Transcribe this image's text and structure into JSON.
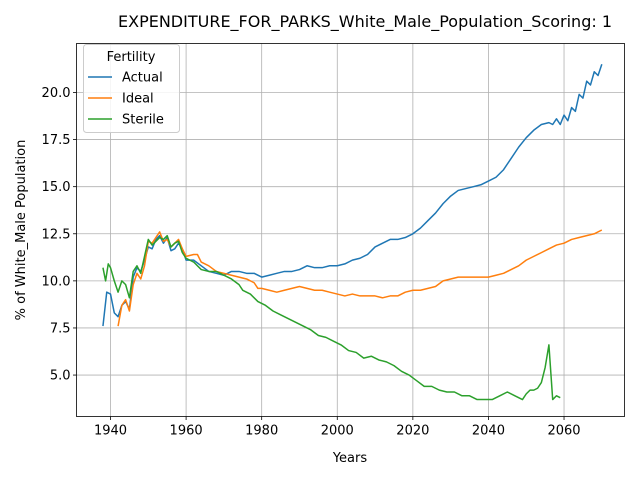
{
  "chart_data": {
    "type": "line",
    "title": "EXPENDITURE_FOR_PARKS_White_Male_Population_Scoring: 1",
    "xlabel": "Years",
    "ylabel": "% of White_Male Population",
    "xlim": [
      1931,
      2076
    ],
    "ylim": [
      2.8,
      22.6
    ],
    "xticks": [
      1940,
      1960,
      1980,
      2000,
      2020,
      2040,
      2060
    ],
    "yticks": [
      5.0,
      7.5,
      10.0,
      12.5,
      15.0,
      17.5,
      20.0
    ],
    "grid": true,
    "legend": {
      "title": "Fertility",
      "placement": "top-left"
    },
    "series": [
      {
        "name": "Actual",
        "color": "#1f77b4",
        "points": [
          [
            1938,
            7.6
          ],
          [
            1939,
            9.4
          ],
          [
            1940,
            9.3
          ],
          [
            1941,
            8.3
          ],
          [
            1942,
            8.1
          ],
          [
            1943,
            8.7
          ],
          [
            1944,
            8.9
          ],
          [
            1945,
            8.5
          ],
          [
            1946,
            10.2
          ],
          [
            1947,
            10.7
          ],
          [
            1948,
            10.5
          ],
          [
            1949,
            11.1
          ],
          [
            1950,
            11.8
          ],
          [
            1951,
            11.7
          ],
          [
            1952,
            12.2
          ],
          [
            1953,
            12.4
          ],
          [
            1954,
            12.0
          ],
          [
            1955,
            12.3
          ],
          [
            1956,
            11.6
          ],
          [
            1957,
            11.7
          ],
          [
            1958,
            12.0
          ],
          [
            1959,
            11.7
          ],
          [
            1960,
            11.1
          ],
          [
            1962,
            11.1
          ],
          [
            1964,
            10.8
          ],
          [
            1966,
            10.5
          ],
          [
            1968,
            10.4
          ],
          [
            1970,
            10.3
          ],
          [
            1972,
            10.5
          ],
          [
            1974,
            10.5
          ],
          [
            1976,
            10.4
          ],
          [
            1978,
            10.4
          ],
          [
            1980,
            10.2
          ],
          [
            1982,
            10.3
          ],
          [
            1984,
            10.4
          ],
          [
            1986,
            10.5
          ],
          [
            1988,
            10.5
          ],
          [
            1990,
            10.6
          ],
          [
            1992,
            10.8
          ],
          [
            1994,
            10.7
          ],
          [
            1996,
            10.7
          ],
          [
            1998,
            10.8
          ],
          [
            2000,
            10.8
          ],
          [
            2002,
            10.9
          ],
          [
            2004,
            11.1
          ],
          [
            2006,
            11.2
          ],
          [
            2008,
            11.4
          ],
          [
            2010,
            11.8
          ],
          [
            2012,
            12.0
          ],
          [
            2014,
            12.2
          ],
          [
            2016,
            12.2
          ],
          [
            2018,
            12.3
          ],
          [
            2020,
            12.5
          ],
          [
            2022,
            12.8
          ],
          [
            2024,
            13.2
          ],
          [
            2026,
            13.6
          ],
          [
            2028,
            14.1
          ],
          [
            2030,
            14.5
          ],
          [
            2032,
            14.8
          ],
          [
            2034,
            14.9
          ],
          [
            2036,
            15.0
          ],
          [
            2038,
            15.1
          ],
          [
            2040,
            15.3
          ],
          [
            2042,
            15.5
          ],
          [
            2044,
            15.9
          ],
          [
            2046,
            16.5
          ],
          [
            2048,
            17.1
          ],
          [
            2050,
            17.6
          ],
          [
            2052,
            18.0
          ],
          [
            2054,
            18.3
          ],
          [
            2056,
            18.4
          ],
          [
            2057,
            18.3
          ],
          [
            2058,
            18.6
          ],
          [
            2059,
            18.3
          ],
          [
            2060,
            18.8
          ],
          [
            2061,
            18.5
          ],
          [
            2062,
            19.2
          ],
          [
            2063,
            19.0
          ],
          [
            2064,
            19.9
          ],
          [
            2065,
            19.7
          ],
          [
            2066,
            20.6
          ],
          [
            2067,
            20.4
          ],
          [
            2068,
            21.1
          ],
          [
            2069,
            20.9
          ],
          [
            2070,
            21.5
          ]
        ]
      },
      {
        "name": "Ideal",
        "color": "#ff7f0e",
        "points": [
          [
            1942,
            7.6
          ],
          [
            1943,
            8.7
          ],
          [
            1944,
            9.0
          ],
          [
            1945,
            8.4
          ],
          [
            1946,
            9.8
          ],
          [
            1947,
            10.4
          ],
          [
            1948,
            10.1
          ],
          [
            1949,
            10.8
          ],
          [
            1950,
            12.1
          ],
          [
            1951,
            12.0
          ],
          [
            1952,
            12.3
          ],
          [
            1953,
            12.6
          ],
          [
            1954,
            12.1
          ],
          [
            1955,
            12.2
          ],
          [
            1956,
            11.8
          ],
          [
            1957,
            12.0
          ],
          [
            1958,
            12.2
          ],
          [
            1959,
            11.7
          ],
          [
            1960,
            11.3
          ],
          [
            1962,
            11.4
          ],
          [
            1963,
            11.4
          ],
          [
            1964,
            11.0
          ],
          [
            1966,
            10.8
          ],
          [
            1968,
            10.5
          ],
          [
            1970,
            10.4
          ],
          [
            1972,
            10.3
          ],
          [
            1974,
            10.2
          ],
          [
            1976,
            10.1
          ],
          [
            1978,
            9.9
          ],
          [
            1979,
            9.6
          ],
          [
            1980,
            9.6
          ],
          [
            1982,
            9.5
          ],
          [
            1984,
            9.4
          ],
          [
            1986,
            9.5
          ],
          [
            1988,
            9.6
          ],
          [
            1990,
            9.7
          ],
          [
            1992,
            9.6
          ],
          [
            1994,
            9.5
          ],
          [
            1996,
            9.5
          ],
          [
            1998,
            9.4
          ],
          [
            2000,
            9.3
          ],
          [
            2002,
            9.2
          ],
          [
            2004,
            9.3
          ],
          [
            2006,
            9.2
          ],
          [
            2008,
            9.2
          ],
          [
            2010,
            9.2
          ],
          [
            2012,
            9.1
          ],
          [
            2014,
            9.2
          ],
          [
            2016,
            9.2
          ],
          [
            2018,
            9.4
          ],
          [
            2020,
            9.5
          ],
          [
            2022,
            9.5
          ],
          [
            2024,
            9.6
          ],
          [
            2026,
            9.7
          ],
          [
            2028,
            10.0
          ],
          [
            2030,
            10.1
          ],
          [
            2032,
            10.2
          ],
          [
            2034,
            10.2
          ],
          [
            2036,
            10.2
          ],
          [
            2038,
            10.2
          ],
          [
            2040,
            10.2
          ],
          [
            2042,
            10.3
          ],
          [
            2044,
            10.4
          ],
          [
            2046,
            10.6
          ],
          [
            2048,
            10.8
          ],
          [
            2050,
            11.1
          ],
          [
            2052,
            11.3
          ],
          [
            2054,
            11.5
          ],
          [
            2056,
            11.7
          ],
          [
            2058,
            11.9
          ],
          [
            2060,
            12.0
          ],
          [
            2062,
            12.2
          ],
          [
            2064,
            12.3
          ],
          [
            2066,
            12.4
          ],
          [
            2068,
            12.5
          ],
          [
            2070,
            12.7
          ]
        ]
      },
      {
        "name": "Sterile",
        "color": "#2ca02c",
        "points": [
          [
            1938,
            10.7
          ],
          [
            1938.7,
            10.0
          ],
          [
            1939.4,
            10.9
          ],
          [
            1940,
            10.7
          ],
          [
            1941,
            10.0
          ],
          [
            1942,
            9.4
          ],
          [
            1943,
            10.0
          ],
          [
            1944,
            9.8
          ],
          [
            1945,
            9.1
          ],
          [
            1946,
            10.5
          ],
          [
            1947,
            10.8
          ],
          [
            1948,
            10.4
          ],
          [
            1949,
            11.3
          ],
          [
            1950,
            12.2
          ],
          [
            1951,
            11.9
          ],
          [
            1952,
            12.1
          ],
          [
            1953,
            12.3
          ],
          [
            1954,
            12.2
          ],
          [
            1955,
            12.4
          ],
          [
            1956,
            11.8
          ],
          [
            1957,
            12.0
          ],
          [
            1958,
            12.1
          ],
          [
            1959,
            11.5
          ],
          [
            1960,
            11.2
          ],
          [
            1962,
            11.0
          ],
          [
            1964,
            10.6
          ],
          [
            1966,
            10.5
          ],
          [
            1968,
            10.5
          ],
          [
            1970,
            10.3
          ],
          [
            1972,
            10.1
          ],
          [
            1974,
            9.8
          ],
          [
            1975,
            9.5
          ],
          [
            1977,
            9.3
          ],
          [
            1979,
            8.9
          ],
          [
            1981,
            8.7
          ],
          [
            1983,
            8.4
          ],
          [
            1985,
            8.2
          ],
          [
            1987,
            8.0
          ],
          [
            1989,
            7.8
          ],
          [
            1991,
            7.6
          ],
          [
            1993,
            7.4
          ],
          [
            1995,
            7.1
          ],
          [
            1997,
            7.0
          ],
          [
            1999,
            6.8
          ],
          [
            2001,
            6.6
          ],
          [
            2003,
            6.3
          ],
          [
            2005,
            6.2
          ],
          [
            2007,
            5.9
          ],
          [
            2009,
            6.0
          ],
          [
            2011,
            5.8
          ],
          [
            2013,
            5.7
          ],
          [
            2015,
            5.5
          ],
          [
            2017,
            5.2
          ],
          [
            2019,
            5.0
          ],
          [
            2021,
            4.7
          ],
          [
            2023,
            4.4
          ],
          [
            2025,
            4.4
          ],
          [
            2027,
            4.2
          ],
          [
            2029,
            4.1
          ],
          [
            2031,
            4.1
          ],
          [
            2033,
            3.9
          ],
          [
            2035,
            3.9
          ],
          [
            2037,
            3.7
          ],
          [
            2039,
            3.7
          ],
          [
            2041,
            3.7
          ],
          [
            2043,
            3.9
          ],
          [
            2045,
            4.1
          ],
          [
            2047,
            3.9
          ],
          [
            2049,
            3.7
          ],
          [
            2050,
            4.0
          ],
          [
            2051,
            4.2
          ],
          [
            2052,
            4.2
          ],
          [
            2053,
            4.3
          ],
          [
            2054,
            4.6
          ],
          [
            2055,
            5.4
          ],
          [
            2056,
            6.6
          ],
          [
            2057,
            3.7
          ],
          [
            2058,
            3.9
          ],
          [
            2059,
            3.8
          ]
        ]
      }
    ]
  }
}
